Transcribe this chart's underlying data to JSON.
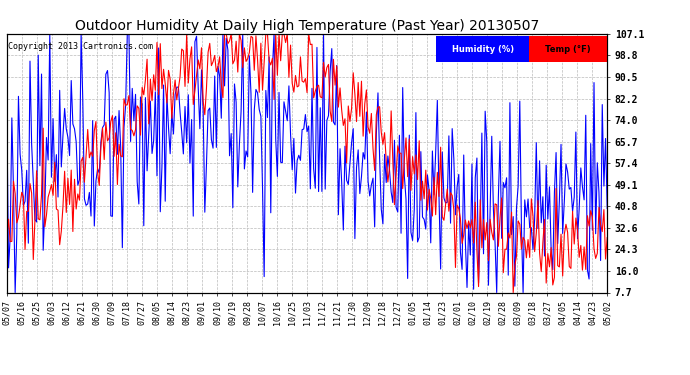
{
  "title": "Outdoor Humidity At Daily High Temperature (Past Year) 20130507",
  "copyright": "Copyright 2013 Cartronics.com",
  "ylabel_right": [
    "107.1",
    "98.8",
    "90.5",
    "82.2",
    "74.0",
    "65.7",
    "57.4",
    "49.1",
    "40.8",
    "32.6",
    "24.3",
    "16.0",
    "7.7"
  ],
  "yticks_right": [
    107.1,
    98.8,
    90.5,
    82.2,
    74.0,
    65.7,
    57.4,
    49.1,
    40.8,
    32.6,
    24.3,
    16.0,
    7.7
  ],
  "ymin": 7.7,
  "ymax": 107.1,
  "bg_color": "#ffffff",
  "plot_bg": "#ffffff",
  "grid_color": "#bbbbbb",
  "title_fontsize": 10,
  "tick_fontsize": 6,
  "line_width": 0.8,
  "xtick_labels": [
    "05/07",
    "05/16",
    "05/25",
    "06/03",
    "06/12",
    "06/21",
    "06/30",
    "07/09",
    "07/18",
    "07/27",
    "08/05",
    "08/14",
    "08/23",
    "09/01",
    "09/10",
    "09/19",
    "09/28",
    "10/07",
    "10/16",
    "10/25",
    "11/03",
    "11/12",
    "11/21",
    "11/30",
    "12/09",
    "12/18",
    "12/27",
    "01/05",
    "01/14",
    "01/23",
    "02/01",
    "02/10",
    "02/19",
    "02/28",
    "03/09",
    "03/18",
    "03/27",
    "04/05",
    "04/14",
    "04/23",
    "05/02"
  ]
}
